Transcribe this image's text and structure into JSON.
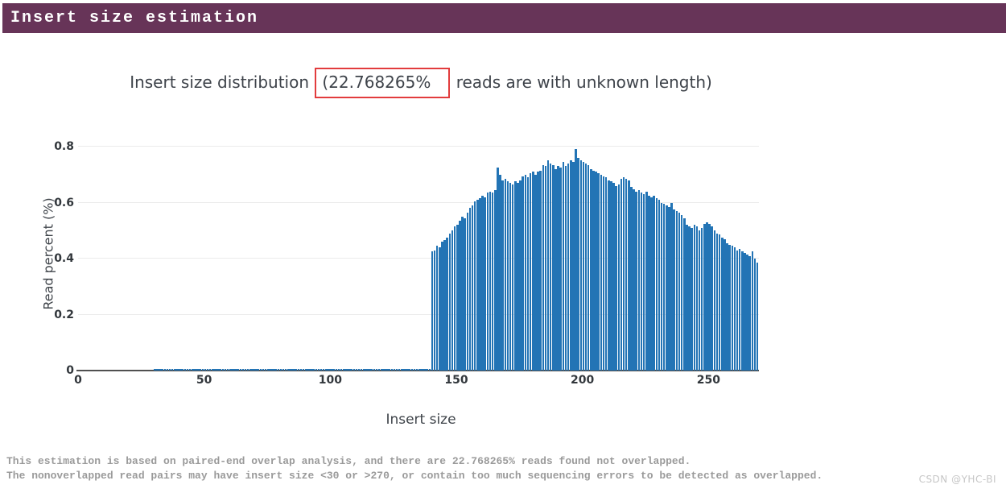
{
  "header": {
    "title": "Insert size estimation",
    "bg_color": "#673458"
  },
  "title": {
    "prefix": "Insert size distribution ",
    "highlight": "(22.768265%",
    "suffix": " reads are with unknown length)",
    "highlight_box_color": "#e23c3d"
  },
  "footer": {
    "line1": "This estimation is based on paired-end overlap analysis, and there are 22.768265% reads found not overlapped.",
    "line2": "The nonoverlapped read pairs may have insert size <30 or >270, or contain too much sequencing errors to be detected as overlapped."
  },
  "watermark": "CSDN @YHC-BI",
  "chart_data": {
    "type": "bar",
    "title": "Insert size distribution (22.768265% reads are with unknown length)",
    "xlabel": "Insert size",
    "ylabel": "Read percent (%)",
    "xlim": [
      0,
      270
    ],
    "ylim": [
      0,
      0.8345
    ],
    "x_ticks": [
      0,
      50,
      100,
      150,
      200,
      250
    ],
    "y_ticks": [
      0,
      0.2,
      0.4,
      0.6,
      0.8
    ],
    "grid": true,
    "legend": "none",
    "bar_color": "#2374b5",
    "gridline_color": "#ebebeb",
    "segments": [
      {
        "x_from": 1,
        "x_to": 30,
        "value": 0
      },
      {
        "x_from": 31,
        "x_to": 140,
        "value": 0.006
      },
      {
        "x_from": 141,
        "x_to": 270,
        "values": [
          0.425,
          0.43,
          0.445,
          0.44,
          0.46,
          0.465,
          0.475,
          0.49,
          0.5,
          0.515,
          0.52,
          0.535,
          0.55,
          0.545,
          0.565,
          0.58,
          0.59,
          0.605,
          0.61,
          0.615,
          0.625,
          0.62,
          0.635,
          0.64,
          0.635,
          0.645,
          0.725,
          0.7,
          0.68,
          0.685,
          0.675,
          0.67,
          0.665,
          0.675,
          0.67,
          0.68,
          0.695,
          0.7,
          0.69,
          0.705,
          0.71,
          0.7,
          0.71,
          0.715,
          0.735,
          0.73,
          0.75,
          0.74,
          0.735,
          0.72,
          0.73,
          0.725,
          0.745,
          0.73,
          0.74,
          0.75,
          0.745,
          0.79,
          0.76,
          0.75,
          0.745,
          0.74,
          0.735,
          0.72,
          0.715,
          0.71,
          0.705,
          0.7,
          0.695,
          0.69,
          0.68,
          0.675,
          0.67,
          0.66,
          0.665,
          0.685,
          0.69,
          0.685,
          0.68,
          0.655,
          0.647,
          0.64,
          0.645,
          0.635,
          0.63,
          0.64,
          0.625,
          0.62,
          0.625,
          0.615,
          0.61,
          0.6,
          0.595,
          0.59,
          0.585,
          0.6,
          0.575,
          0.57,
          0.565,
          0.555,
          0.545,
          0.52,
          0.515,
          0.51,
          0.52,
          0.515,
          0.5,
          0.51,
          0.525,
          0.53,
          0.525,
          0.515,
          0.5,
          0.49,
          0.485,
          0.475,
          0.47,
          0.455,
          0.45,
          0.445,
          0.44,
          0.43,
          0.435,
          0.425,
          0.42,
          0.415,
          0.41,
          0.425,
          0.4,
          0.385
        ]
      }
    ]
  }
}
